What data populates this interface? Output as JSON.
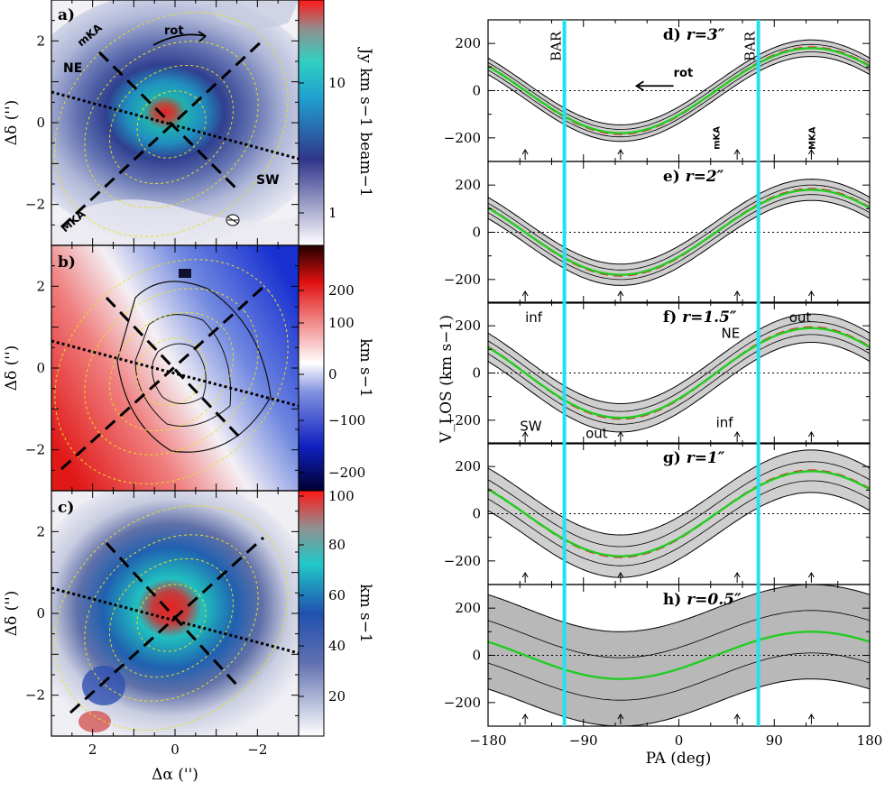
{
  "chart_data": [
    {
      "type": "heatmap",
      "panel": "a)",
      "xlabel": "",
      "ylabel": "Δδ ('')",
      "xlim": [
        3,
        -3
      ],
      "ylim": [
        -3,
        3
      ],
      "yticks": [
        2,
        0,
        -2
      ],
      "colorbar_label": "Jy km s−1 beam−1",
      "colorbar_ticks": [
        "10",
        "1"
      ],
      "annotations": [
        "mKA",
        "NE",
        "SW",
        "MKA",
        "rot"
      ]
    },
    {
      "type": "heatmap",
      "panel": "b)",
      "xlabel": "",
      "ylabel": "Δδ ('')",
      "xlim": [
        3,
        -3
      ],
      "ylim": [
        -3,
        3
      ],
      "yticks": [
        2,
        0,
        -2
      ],
      "colorbar_label": "km s−1",
      "colorbar_ticks": [
        "200",
        "100",
        "0",
        "−100",
        "−200"
      ]
    },
    {
      "type": "heatmap",
      "panel": "c)",
      "xlabel": "Δα ('')",
      "ylabel": "Δδ ('')",
      "xlim": [
        3,
        -3
      ],
      "ylim": [
        -3,
        3
      ],
      "xticks": [
        2,
        0,
        -2
      ],
      "yticks": [
        2,
        0,
        -2
      ],
      "colorbar_label": "km s−1",
      "colorbar_ticks": [
        "100",
        "80",
        "60",
        "40",
        "20"
      ]
    },
    {
      "type": "line",
      "panels": [
        {
          "label": "d)",
          "radius": "r=3″"
        },
        {
          "label": "e)",
          "radius": "r=2″"
        },
        {
          "label": "f)",
          "radius": "r=1.5″"
        },
        {
          "label": "g)",
          "radius": "r=1″"
        },
        {
          "label": "h)",
          "radius": "r=0.5″"
        }
      ],
      "xlabel": "PA (deg)",
      "ylabel": "V_LOS (km s−1)",
      "xlim": [
        -180,
        180
      ],
      "ylim": [
        -300,
        300
      ],
      "xticks": [
        -180,
        -90,
        0,
        90,
        180
      ],
      "yticks": [
        200,
        0,
        -200
      ],
      "bar_positions": [
        -108,
        75
      ],
      "bar_label": "BAR",
      "model_amplitude": [
        180,
        180,
        190,
        180,
        100
      ],
      "model_phase": 125,
      "annotations_f": [
        "inf",
        "out",
        "NE",
        "SW",
        "inf",
        "out"
      ],
      "annotations_d": [
        "rot",
        "mKA",
        "MKA"
      ]
    }
  ],
  "colors": {
    "model_green": "#22cc22",
    "model_red": "#e02020",
    "bar_cyan": "#22e0ee"
  }
}
